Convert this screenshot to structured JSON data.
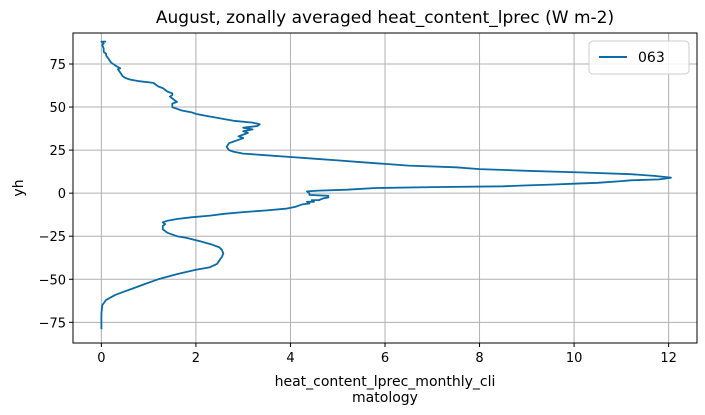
{
  "chart_data": {
    "type": "line",
    "title": "August, zonally averaged heat_content_lprec (W m-2)",
    "xlabel_lines": [
      "heat_content_lprec_monthly_cli",
      "matology"
    ],
    "ylabel": "yh",
    "xlim": [
      -0.6,
      12.6
    ],
    "ylim": [
      -87,
      93
    ],
    "xticks": [
      0,
      2,
      4,
      6,
      8,
      10,
      12
    ],
    "yticks": [
      -75,
      -50,
      -25,
      0,
      25,
      50,
      75
    ],
    "xtick_labels": [
      "0",
      "2",
      "4",
      "6",
      "8",
      "10",
      "12"
    ],
    "ytick_labels": [
      "−75",
      "−50",
      "−25",
      "0",
      "25",
      "50",
      "75"
    ],
    "grid": true,
    "legend_position": "top-right",
    "series": [
      {
        "name": "063",
        "color": "#0a6ba6",
        "points": [
          [
            0.0,
            -79
          ],
          [
            0.0,
            -70
          ],
          [
            0.02,
            -65
          ],
          [
            0.1,
            -62
          ],
          [
            0.3,
            -59
          ],
          [
            0.6,
            -56
          ],
          [
            0.9,
            -53
          ],
          [
            1.2,
            -50
          ],
          [
            1.6,
            -47
          ],
          [
            2.0,
            -44.5
          ],
          [
            2.3,
            -43
          ],
          [
            2.45,
            -41
          ],
          [
            2.5,
            -39
          ],
          [
            2.55,
            -37
          ],
          [
            2.58,
            -35
          ],
          [
            2.55,
            -33
          ],
          [
            2.5,
            -31.5
          ],
          [
            2.35,
            -30
          ],
          [
            2.1,
            -28
          ],
          [
            1.8,
            -26
          ],
          [
            1.6,
            -25
          ],
          [
            1.4,
            -23
          ],
          [
            1.3,
            -21
          ],
          [
            1.3,
            -19
          ],
          [
            1.35,
            -18
          ],
          [
            1.3,
            -17
          ],
          [
            1.4,
            -16
          ],
          [
            1.6,
            -15
          ],
          [
            1.9,
            -14
          ],
          [
            2.3,
            -13
          ],
          [
            2.6,
            -12
          ],
          [
            3.0,
            -11
          ],
          [
            3.5,
            -10
          ],
          [
            3.9,
            -9
          ],
          [
            4.1,
            -8
          ],
          [
            4.2,
            -7
          ],
          [
            4.25,
            -6.5
          ],
          [
            4.4,
            -6
          ],
          [
            4.35,
            -5
          ],
          [
            4.5,
            -5
          ],
          [
            4.45,
            -4
          ],
          [
            4.6,
            -4
          ],
          [
            4.7,
            -3
          ],
          [
            4.8,
            -2.5
          ],
          [
            4.8,
            -2
          ],
          [
            4.8,
            -1.5
          ],
          [
            4.4,
            -1
          ],
          [
            4.4,
            0
          ],
          [
            4.35,
            1
          ],
          [
            4.6,
            1.5
          ],
          [
            5.2,
            2
          ],
          [
            5.8,
            3
          ],
          [
            7.0,
            3.5
          ],
          [
            8.5,
            4
          ],
          [
            9.0,
            4.5
          ],
          [
            9.5,
            5
          ],
          [
            10.0,
            5.5
          ],
          [
            10.5,
            6
          ],
          [
            11.0,
            7
          ],
          [
            11.2,
            7.5
          ],
          [
            11.8,
            8
          ],
          [
            12.05,
            9
          ],
          [
            11.7,
            10
          ],
          [
            11.2,
            11
          ],
          [
            10.2,
            12
          ],
          [
            9.0,
            13
          ],
          [
            8.0,
            14
          ],
          [
            7.5,
            15
          ],
          [
            6.5,
            16
          ],
          [
            6.0,
            17
          ],
          [
            5.5,
            18
          ],
          [
            5.0,
            19
          ],
          [
            4.5,
            20
          ],
          [
            4.0,
            21
          ],
          [
            3.5,
            22
          ],
          [
            3.0,
            23
          ],
          [
            2.8,
            24
          ],
          [
            2.7,
            25
          ],
          [
            2.65,
            27
          ],
          [
            2.7,
            29
          ],
          [
            2.8,
            30
          ],
          [
            2.9,
            31
          ],
          [
            3.0,
            32
          ],
          [
            2.9,
            33
          ],
          [
            3.0,
            34
          ],
          [
            3.1,
            35
          ],
          [
            3.0,
            36
          ],
          [
            3.2,
            37
          ],
          [
            3.0,
            38
          ],
          [
            3.3,
            39
          ],
          [
            3.35,
            40
          ],
          [
            3.2,
            41
          ],
          [
            2.8,
            42
          ],
          [
            2.6,
            43
          ],
          [
            2.4,
            44
          ],
          [
            2.2,
            45
          ],
          [
            2.0,
            46
          ],
          [
            1.9,
            47
          ],
          [
            1.7,
            48
          ],
          [
            1.6,
            49
          ],
          [
            1.5,
            50
          ],
          [
            1.5,
            52
          ],
          [
            1.6,
            53
          ],
          [
            1.55,
            54
          ],
          [
            1.5,
            55
          ],
          [
            1.45,
            56
          ],
          [
            1.5,
            57
          ],
          [
            1.5,
            58
          ],
          [
            1.4,
            59
          ],
          [
            1.3,
            61
          ],
          [
            1.2,
            62
          ],
          [
            1.1,
            64
          ],
          [
            0.8,
            65
          ],
          [
            0.6,
            66
          ],
          [
            0.5,
            67
          ],
          [
            0.45,
            68
          ],
          [
            0.4,
            70
          ],
          [
            0.35,
            72
          ],
          [
            0.4,
            72.5
          ],
          [
            0.3,
            74
          ],
          [
            0.2,
            76
          ],
          [
            0.15,
            78
          ],
          [
            0.1,
            80
          ],
          [
            0.1,
            81
          ],
          [
            0.05,
            82
          ],
          [
            0.05,
            84
          ],
          [
            0.02,
            86
          ],
          [
            0.05,
            87
          ],
          [
            0.0,
            88
          ],
          [
            0.1,
            88
          ]
        ]
      }
    ]
  }
}
